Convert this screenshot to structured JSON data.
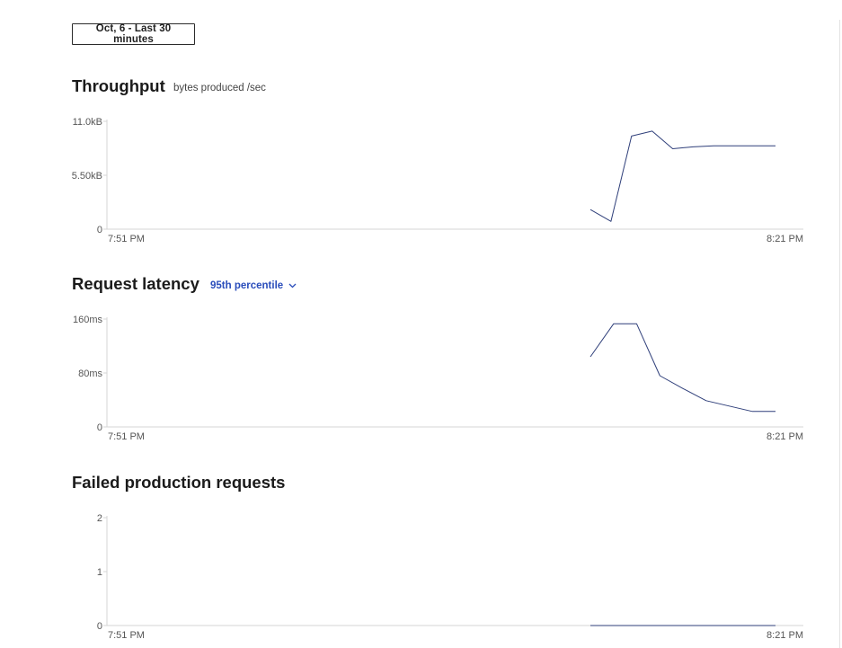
{
  "time_range": {
    "label": "Oct, 6 - Last 30 minutes"
  },
  "sections": {
    "throughput": {
      "title": "Throughput",
      "subtitle": "bytes produced /sec"
    },
    "latency": {
      "title": "Request latency",
      "percentile": "95th percentile"
    },
    "failed": {
      "title": "Failed production requests"
    }
  },
  "colors": {
    "line": "#2f3f7a",
    "axis": "#d6d6d6",
    "link": "#2a4dbb"
  },
  "chart_data": [
    {
      "type": "line",
      "title": "Throughput",
      "x_tick_labels": [
        "7:51 PM",
        "8:21 PM"
      ],
      "y_tick_labels": [
        "11.0kB",
        "5.50kB",
        "0"
      ],
      "ylim": [
        0,
        11.0
      ],
      "x": [
        0,
        1,
        2,
        3,
        4,
        5,
        6,
        7,
        8,
        9
      ],
      "series": [
        {
          "values": [
            2.0,
            0.8,
            9.5,
            10.0,
            8.2,
            8.4,
            8.5,
            8.5,
            8.5,
            8.5
          ]
        }
      ]
    },
    {
      "type": "line",
      "title": "Request latency",
      "x_tick_labels": [
        "7:51 PM",
        "8:21 PM"
      ],
      "y_tick_labels": [
        "160ms",
        "80ms",
        "0"
      ],
      "ylim": [
        0,
        160
      ],
      "x": [
        0,
        1,
        2,
        3,
        4,
        5,
        6,
        7,
        8
      ],
      "series": [
        {
          "values": [
            104,
            153,
            153,
            76,
            57,
            39,
            31,
            23,
            23
          ]
        }
      ]
    },
    {
      "type": "line",
      "title": "Failed production requests",
      "x_tick_labels": [
        "7:51 PM",
        "8:21 PM"
      ],
      "y_tick_labels": [
        "2",
        "1",
        "0"
      ],
      "ylim": [
        0,
        2
      ],
      "x": [
        0,
        1,
        2,
        3,
        4,
        5,
        6,
        7,
        8
      ],
      "series": [
        {
          "values": [
            0,
            0,
            0,
            0,
            0,
            0,
            0,
            0,
            0
          ]
        }
      ]
    }
  ]
}
